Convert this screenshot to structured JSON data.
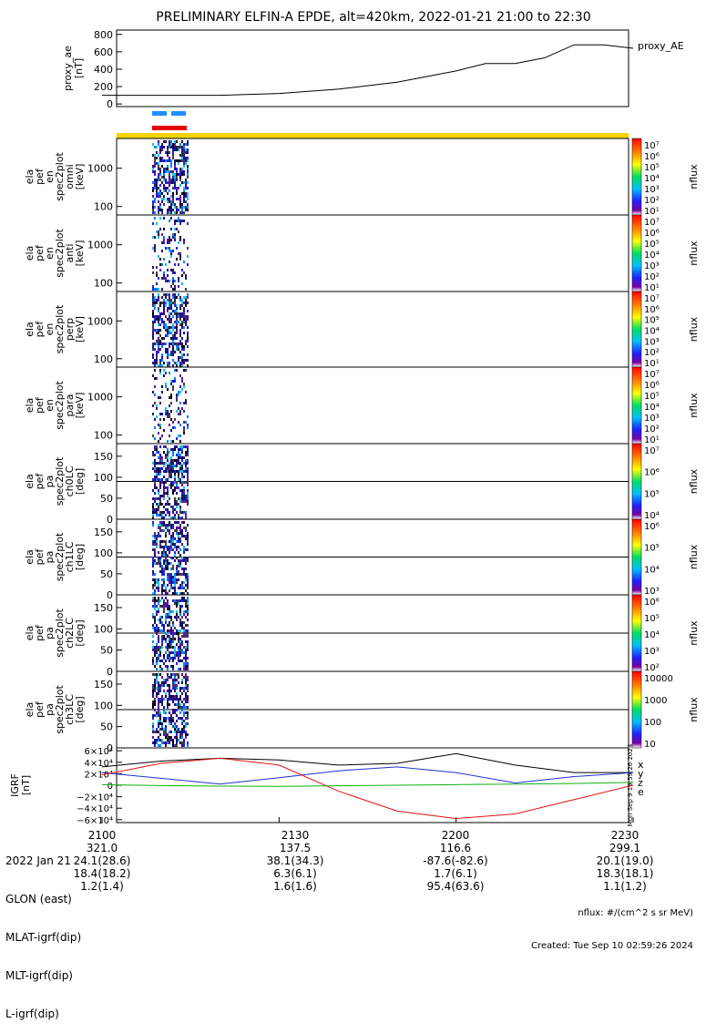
{
  "title": "PRELIMINARY ELFIN-A EPDE, alt=420km, 2022-01-21 21:00 to 22:30",
  "colors": {
    "orbit_bar": "#f5d400",
    "blue_bar": "#1e90ff",
    "red_bar": "#e8000b",
    "grf_x": "#000000",
    "grf_y": "#2030d0",
    "grf_z": "#e01010",
    "grf_e": "#10b010"
  },
  "chart_data": [
    {
      "id": "proxy_ae",
      "type": "line",
      "ylabel": "proxy_ae\n[nT]",
      "legend": "proxy_AE",
      "ylim": [
        -30,
        850
      ],
      "yticks": [
        0,
        200,
        400,
        600,
        800
      ],
      "x_minutes": [
        0,
        20,
        30,
        40,
        50,
        60,
        65,
        70,
        75,
        80,
        85,
        90
      ],
      "values": [
        100,
        100,
        120,
        170,
        250,
        380,
        465,
        465,
        530,
        680,
        680,
        640
      ]
    },
    {
      "id": "en_omni",
      "type": "heatmap",
      "ylabel": "ela\npef\nen\nspec2plot\nomni\n[keV]",
      "ylog": true,
      "yticks": [
        100,
        1000
      ],
      "cbar_log": true,
      "cbar_range": [
        10,
        10000000
      ],
      "cbar_label": "nflux"
    },
    {
      "id": "en_anti",
      "type": "heatmap",
      "ylabel": "ela\npef\nen\nspec2plot\nanti\n[keV]",
      "ylog": true,
      "yticks": [
        100,
        1000
      ],
      "cbar_log": true,
      "cbar_range": [
        10,
        10000000
      ],
      "cbar_label": "nflux"
    },
    {
      "id": "en_perp",
      "type": "heatmap",
      "ylabel": "ela\npef\nen\nspec2plot\nperp\n[keV]",
      "ylog": true,
      "yticks": [
        100,
        1000
      ],
      "cbar_log": true,
      "cbar_range": [
        10,
        10000000
      ],
      "cbar_label": "nflux"
    },
    {
      "id": "en_para",
      "type": "heatmap",
      "ylabel": "ela\npef\nen\nspec2plot\npara\n[keV]",
      "ylog": true,
      "yticks": [
        100,
        1000
      ],
      "cbar_log": true,
      "cbar_range": [
        10,
        10000000
      ],
      "cbar_label": "nflux"
    },
    {
      "id": "pa_ch0",
      "type": "heatmap",
      "ylabel": "ela\npef\npa\nspec2plot\nch0LC\n[deg]",
      "yticks": [
        0,
        50,
        100,
        150
      ],
      "cbar_log": true,
      "cbar_range": [
        1000,
        10000000
      ],
      "cbar_label": "nflux"
    },
    {
      "id": "pa_ch1",
      "type": "heatmap",
      "ylabel": "ela\npef\npa\nspec2plot\nch1LC\n[deg]",
      "yticks": [
        0,
        50,
        100,
        150
      ],
      "cbar_log": true,
      "cbar_range": [
        1000,
        1000000
      ],
      "cbar_label": "nflux"
    },
    {
      "id": "pa_ch2",
      "type": "heatmap",
      "ylabel": "ela\npef\npa\nspec2plot\nch2LC\n[deg]",
      "yticks": [
        0,
        50,
        100,
        150
      ],
      "cbar_log": true,
      "cbar_range": [
        100,
        1000000
      ],
      "cbar_label": "nflux"
    },
    {
      "id": "pa_ch3",
      "type": "heatmap",
      "ylabel": "ela\npef\npa\nspec2plot\nch3LC\n[deg]",
      "yticks": [
        0,
        50,
        100,
        150
      ],
      "cbar_log": true,
      "cbar_range": [
        10,
        10000
      ],
      "cbar_label": "nflux"
    },
    {
      "id": "igrf",
      "type": "line",
      "ylabel": "IGRF\n[nT]",
      "ylim": [
        -65000,
        65000
      ],
      "ytick_values": [
        60000,
        40000,
        20000,
        0,
        -20000,
        -40000,
        -60000
      ],
      "ytick_labels": [
        "6×10⁴",
        "4×10⁴",
        "2×10⁴",
        "0",
        "−2×10⁴",
        "−4×10⁴",
        "−6×10⁴"
      ],
      "legend": [
        "x",
        "y",
        "z",
        "e"
      ],
      "x_minutes": [
        0,
        10,
        20,
        30,
        40,
        50,
        60,
        70,
        80,
        90
      ],
      "series": [
        {
          "name": "x",
          "values": [
            32000,
            42000,
            47000,
            44000,
            35000,
            38000,
            55000,
            35000,
            22000,
            22000
          ]
        },
        {
          "name": "y",
          "values": [
            22000,
            12000,
            2000,
            13000,
            25000,
            32000,
            22000,
            4000,
            15000,
            22000
          ]
        },
        {
          "name": "z",
          "values": [
            18000,
            38000,
            47000,
            35000,
            -10000,
            -45000,
            -58000,
            -50000,
            -25000,
            0
          ]
        },
        {
          "name": "e",
          "values": [
            1000,
            -500,
            -1500,
            -2000,
            -1000,
            0,
            1000,
            2000,
            3000,
            5000
          ]
        }
      ]
    }
  ],
  "cbar_labels": {
    "en": [
      "10⁷",
      "10⁶",
      "10⁵",
      "10⁴",
      "10³",
      "10²",
      "10¹"
    ],
    "pa0": [
      "10⁷",
      "10⁶",
      "10⁵",
      "10⁴"
    ],
    "pa1": [
      "10⁶",
      "10⁵",
      "10⁴",
      "10³"
    ],
    "pa2": [
      "10⁶",
      "10⁵",
      "10⁴",
      "10³",
      "10²"
    ],
    "pa3": [
      "10000",
      "1000",
      "100",
      "10"
    ]
  },
  "x_axis": {
    "row_labels": [
      "2022 Jan 21",
      "GLON (east)",
      "MLAT-igrf(dip)",
      "MLT-igrf(dip)",
      "L-igrf(dip)"
    ],
    "columns": [
      {
        "time": "2100",
        "glon": "321.0",
        "mlat": "24.1(28.6)",
        "mlt": "18.4(18.2)",
        "l": "1.2(1.4)"
      },
      {
        "time": "2130",
        "glon": "137.5",
        "mlat": "38.1(34.3)",
        "mlt": "6.3(6.1)",
        "l": "1.6(1.6)"
      },
      {
        "time": "2200",
        "glon": "116.6",
        "mlat": "-87.6(-82.6)",
        "mlt": "1.7(6.1)",
        "l": "95.4(63.6)"
      },
      {
        "time": "2230",
        "glon": "299.1",
        "mlat": "20.1(19.0)",
        "mlt": "18.3(18.1)",
        "l": "1.1(1.2)"
      }
    ]
  },
  "footer": {
    "units": "nflux: #/(cm^2 s sr MeV)",
    "created": "Created: Tue Sep 10 02:59:26 2024"
  },
  "side_stamp": "Mon Sep 9 19:59:26 2024"
}
